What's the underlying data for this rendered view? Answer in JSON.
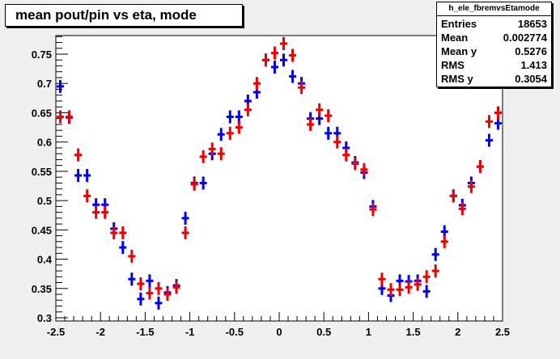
{
  "title": "mean pout/pin vs eta, mode",
  "stats": {
    "name": "h_ele_fbremvsEtamode",
    "rows": [
      {
        "label": "Entries",
        "value": "18653"
      },
      {
        "label": "Mean",
        "value": "0.002774"
      },
      {
        "label": "Mean y",
        "value": "0.5276"
      },
      {
        "label": "RMS",
        "value": "1.413"
      },
      {
        "label": "RMS y",
        "value": "0.3054"
      }
    ]
  },
  "chart_data": {
    "type": "scatter",
    "title": "mean pout/pin vs eta, mode",
    "xlabel": "",
    "ylabel": "",
    "xlim": [
      -2.5,
      2.5
    ],
    "ylim": [
      0.3,
      0.78
    ],
    "x_ticks": [
      "-2.5",
      "-2",
      "-1.5",
      "-1",
      "-0.5",
      "0",
      "0.5",
      "1",
      "1.5",
      "2",
      "2.5"
    ],
    "y_ticks": [
      "0.3",
      "0.35",
      "0.4",
      "0.45",
      "0.5",
      "0.55",
      "0.6",
      "0.65",
      "0.7",
      "0.75"
    ],
    "grid": false,
    "colors": {
      "blue": "#0000ee",
      "red": "#ee0000"
    },
    "x_err": 0.05,
    "series": [
      {
        "color": "#0000ee",
        "x": [
          -2.45,
          -2.35,
          -2.25,
          -2.15,
          -2.05,
          -1.95,
          -1.85,
          -1.75,
          -1.65,
          -1.55,
          -1.45,
          -1.35,
          -1.25,
          -1.15,
          -1.05,
          -0.95,
          -0.85,
          -0.75,
          -0.65,
          -0.55,
          -0.45,
          -0.35,
          -0.25,
          -0.15,
          -0.05,
          0.05,
          0.15,
          0.25,
          0.35,
          0.45,
          0.55,
          0.65,
          0.75,
          0.85,
          0.95,
          1.05,
          1.15,
          1.25,
          1.35,
          1.45,
          1.55,
          1.65,
          1.75,
          1.85,
          1.95,
          2.05,
          2.15,
          2.25,
          2.35,
          2.45
        ],
        "y": [
          0.695,
          0.642,
          0.543,
          0.543,
          0.493,
          0.493,
          0.452,
          0.42,
          0.366,
          0.332,
          0.363,
          0.325,
          0.343,
          0.355,
          0.47,
          0.53,
          0.53,
          0.58,
          0.613,
          0.643,
          0.643,
          0.67,
          0.685,
          0.74,
          0.728,
          0.74,
          0.712,
          0.7,
          0.64,
          0.64,
          0.615,
          0.615,
          0.59,
          0.565,
          0.548,
          0.49,
          0.35,
          0.338,
          0.363,
          0.362,
          0.363,
          0.345,
          0.408,
          0.447,
          0.508,
          0.492,
          0.53,
          0.558,
          0.603,
          0.632
        ]
      },
      {
        "color": "#ee0000",
        "x": [
          -2.45,
          -2.35,
          -2.25,
          -2.15,
          -2.05,
          -1.95,
          -1.85,
          -1.75,
          -1.65,
          -1.55,
          -1.45,
          -1.35,
          -1.25,
          -1.15,
          -1.05,
          -0.95,
          -0.85,
          -0.75,
          -0.65,
          -0.55,
          -0.45,
          -0.35,
          -0.25,
          -0.15,
          -0.05,
          0.05,
          0.15,
          0.25,
          0.35,
          0.45,
          0.55,
          0.65,
          0.75,
          0.85,
          0.95,
          1.05,
          1.15,
          1.25,
          1.35,
          1.45,
          1.55,
          1.65,
          1.75,
          1.85,
          1.95,
          2.05,
          2.15,
          2.25,
          2.35,
          2.45
        ],
        "y": [
          0.643,
          0.643,
          0.578,
          0.508,
          0.48,
          0.48,
          0.445,
          0.445,
          0.405,
          0.358,
          0.342,
          0.35,
          0.34,
          0.352,
          0.445,
          0.528,
          0.575,
          0.588,
          0.58,
          0.615,
          0.625,
          0.655,
          0.7,
          0.74,
          0.752,
          0.768,
          0.748,
          0.693,
          0.63,
          0.655,
          0.645,
          0.6,
          0.578,
          0.563,
          0.553,
          0.485,
          0.366,
          0.348,
          0.348,
          0.352,
          0.357,
          0.37,
          0.38,
          0.43,
          0.508,
          0.486,
          0.524,
          0.558,
          0.635,
          0.65
        ]
      }
    ]
  }
}
